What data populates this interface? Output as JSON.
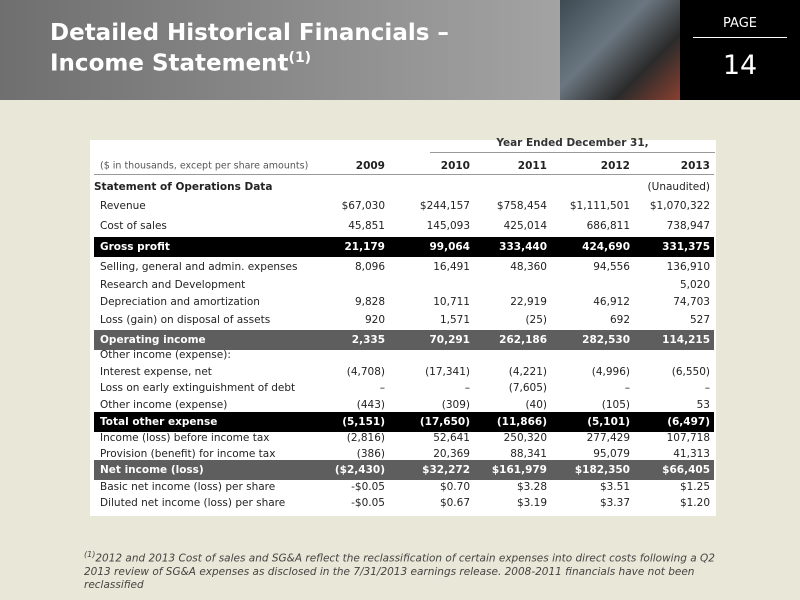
{
  "header": {
    "title_line1": "Detailed Historical Financials –",
    "title_line2": "Income Statement",
    "title_sup": "(1)",
    "page_label": "PAGE",
    "page_number": "14"
  },
  "table": {
    "group_header": "Year Ended December 31,",
    "units": "($ in thousands, except per share amounts)",
    "columns": [
      "2009",
      "2010",
      "2011",
      "2012",
      "2013"
    ],
    "rows": [
      {
        "label": "Statement of Operations Data",
        "cells": [
          null,
          null,
          null,
          null,
          "(Unaudited)"
        ]
      },
      {
        "label": "Revenue",
        "cells": [
          "$67,030",
          "$244,157",
          "$758,454",
          "$1,111,501",
          "$1,070,322"
        ]
      },
      {
        "label": "Cost of sales",
        "cells": [
          "45,851",
          "145,093",
          "425,014",
          "686,811",
          "738,947"
        ]
      },
      {
        "label": "Gross profit",
        "cells": [
          "21,179",
          "99,064",
          "333,440",
          "424,690",
          "331,375"
        ]
      },
      {
        "label": "Selling, general and admin. expenses",
        "cells": [
          "8,096",
          "16,491",
          "48,360",
          "94,556",
          "136,910"
        ]
      },
      {
        "label": "Research and Development",
        "cells": [
          null,
          null,
          null,
          null,
          "5,020"
        ]
      },
      {
        "label": "Depreciation and amortization",
        "cells": [
          "9,828",
          "10,711",
          "22,919",
          "46,912",
          "74,703"
        ]
      },
      {
        "label": "Loss (gain) on disposal of assets",
        "cells": [
          "920",
          "1,571",
          "(25)",
          "692",
          "527"
        ]
      },
      {
        "label": "Operating income",
        "cells": [
          "2,335",
          "70,291",
          "262,186",
          "282,530",
          "114,215"
        ]
      },
      {
        "label": "Other income (expense):",
        "cells": [
          null,
          null,
          null,
          null,
          null
        ]
      },
      {
        "label": "Interest expense, net",
        "cells": [
          "(4,708)",
          "(17,341)",
          "(4,221)",
          "(4,996)",
          "(6,550)"
        ]
      },
      {
        "label": "Loss on early extinguishment of debt",
        "cells": [
          "–",
          "–",
          "(7,605)",
          "–",
          "–"
        ]
      },
      {
        "label": "Other income (expense)",
        "cells": [
          "(443)",
          "(309)",
          "(40)",
          "(105)",
          "53"
        ]
      },
      {
        "label": "Total other expense",
        "cells": [
          "(5,151)",
          "(17,650)",
          "(11,866)",
          "(5,101)",
          "(6,497)"
        ]
      },
      {
        "label": "Income (loss) before income tax",
        "cells": [
          "(2,816)",
          "52,641",
          "250,320",
          "277,429",
          "107,718"
        ]
      },
      {
        "label": "Provision (benefit) for income tax",
        "cells": [
          "(386)",
          "20,369",
          "88,341",
          "95,079",
          "41,313"
        ]
      },
      {
        "label": "Net income (loss)",
        "cells": [
          "($2,430)",
          "$32,272",
          "$161,979",
          "$182,350",
          "$66,405"
        ]
      },
      {
        "label": "Basic net income (loss) per share",
        "cells": [
          "-$0.05",
          "$0.70",
          "$3.28",
          "$3.51",
          "$1.25"
        ]
      },
      {
        "label": "Diluted net income (loss) per share",
        "cells": [
          "-$0.05",
          "$0.67",
          "$3.19",
          "$3.37",
          "$1.20"
        ]
      }
    ]
  },
  "footnote": {
    "sup": "(1)",
    "text": "2012 and 2013 Cost of sales and SG&A reflect the reclassification of certain expenses into direct costs following a Q2 2013 review of SG&A expenses as disclosed in the 7/31/2013 earnings release.  2008-2011 financials have not been reclassified"
  }
}
